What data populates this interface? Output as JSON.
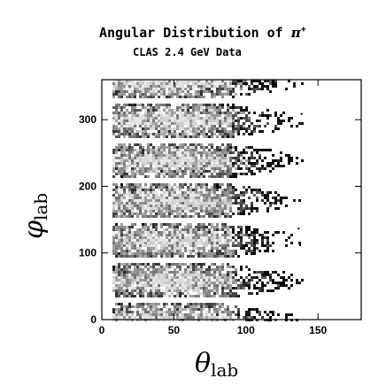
{
  "chart_data": {
    "type": "heatmap",
    "title": "Angular Distribution of ",
    "title_symbol": "π",
    "title_superscript": "+",
    "subtitle": "CLAS 2.4 GeV Data",
    "xlabel": "θ",
    "xlabel_sub": "lab",
    "ylabel": "φ",
    "ylabel_sub": "lab",
    "xlim": [
      0,
      180
    ],
    "ylim": [
      0,
      360
    ],
    "xticks": [
      0,
      50,
      100,
      150
    ],
    "xtick_labels": [
      "0",
      "50",
      "100",
      "150"
    ],
    "yticks": [
      0,
      100,
      200,
      300
    ],
    "ytick_labels": [
      "0",
      "100",
      "200",
      "300"
    ],
    "grid": false,
    "sector_count": 6,
    "sector_centers_phi": [
      0,
      60,
      120,
      180,
      240,
      300
    ],
    "sector_gap_phi_deg": 9,
    "theta_range": [
      8,
      140
    ],
    "density_description": "six sector bands, dense light-gray core at theta 10-90, dark sparse tail to ~140",
    "colors": {
      "low_density": "#000000",
      "high_density": "#d8d8d8",
      "background": "#ffffff",
      "frame": "#000000"
    }
  }
}
